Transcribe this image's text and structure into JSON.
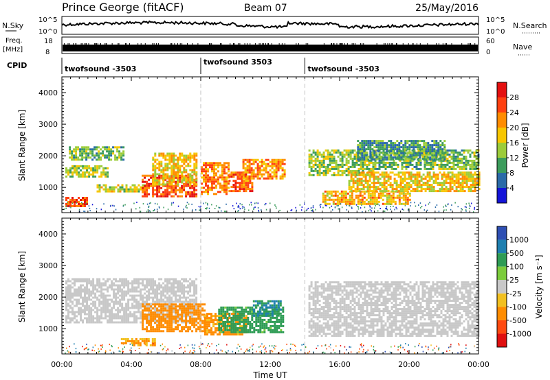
{
  "header": {
    "station": "Prince George (fitACF)",
    "beam": "Beam 07",
    "date": "25/May/2016"
  },
  "top_panels": {
    "nsky_label": "N.Sky",
    "nsky_ticks": [
      "10^5",
      "10^0"
    ],
    "nsearch_label": "N.Search",
    "nsearch_ticks": [
      "10^5",
      "10^0"
    ],
    "freq_label": "Freq.",
    "freq_unit": "[MHz]",
    "freq_ticks": [
      "18",
      "8"
    ],
    "nave_label": "Nave",
    "nave_ticks": [
      "60",
      "0"
    ],
    "cpid_label": "CPID",
    "cpid_segments": [
      {
        "label": "twofsound -3503",
        "start_hour": 0,
        "end_hour": 8
      },
      {
        "label": "twofsound 3503",
        "start_hour": 8,
        "end_hour": 14
      },
      {
        "label": "twofsound -3503",
        "start_hour": 14,
        "end_hour": 24
      }
    ]
  },
  "colorbars": {
    "power": {
      "label": "Power [dB]",
      "ticks": [
        "28",
        "24",
        "20",
        "16",
        "12",
        "8",
        "4"
      ],
      "colors": [
        "#e41010",
        "#ff4010",
        "#ff8c00",
        "#f7c600",
        "#9ccc3a",
        "#3c9c5c",
        "#2a6aa8",
        "#1414d8"
      ]
    },
    "velocity": {
      "label": "Velocity [m s⁻¹]",
      "ticks": [
        "1000",
        "500",
        "100",
        "25",
        "-25",
        "-100",
        "-500",
        "-1000"
      ],
      "colors": [
        "#2e4fb3",
        "#1e7fb0",
        "#2e9c55",
        "#7ccc3c",
        "#c8c8c8",
        "#f2c020",
        "#ff8c00",
        "#ff4a10",
        "#e01010"
      ]
    }
  },
  "chart_data": [
    {
      "type": "heatmap",
      "name": "power",
      "ylabel": "Slant Range [km]",
      "ylim": [
        200,
        4500
      ],
      "yticks": [
        "1000",
        "2000",
        "3000",
        "4000"
      ],
      "xlim": [
        0,
        24
      ],
      "markers_hours": [
        8,
        14
      ],
      "regions": [
        {
          "x": [
            0.2,
            2.6
          ],
          "y": [
            1350,
            1700
          ],
          "level_db": 14
        },
        {
          "x": [
            0.4,
            3.6
          ],
          "y": [
            1900,
            2300
          ],
          "level_db": 12
        },
        {
          "x": [
            0.2,
            1.4
          ],
          "y": [
            400,
            700
          ],
          "level_db": 26
        },
        {
          "x": [
            2.0,
            4.8
          ],
          "y": [
            900,
            1100
          ],
          "level_db": 16
        },
        {
          "x": [
            4.6,
            7.8
          ],
          "y": [
            700,
            1400
          ],
          "level_db": 26
        },
        {
          "x": [
            5.2,
            7.8
          ],
          "y": [
            1100,
            2100
          ],
          "level_db": 18
        },
        {
          "x": [
            8.0,
            9.6
          ],
          "y": [
            800,
            1800
          ],
          "level_db": 22
        },
        {
          "x": [
            9.6,
            11.0
          ],
          "y": [
            900,
            1500
          ],
          "level_db": 24
        },
        {
          "x": [
            10.4,
            12.8
          ],
          "y": [
            1300,
            1900
          ],
          "level_db": 22
        },
        {
          "x": [
            14.2,
            18.0
          ],
          "y": [
            1400,
            2200
          ],
          "level_db": 14
        },
        {
          "x": [
            15.0,
            20.0
          ],
          "y": [
            500,
            900
          ],
          "level_db": 20
        },
        {
          "x": [
            16.5,
            24.0
          ],
          "y": [
            900,
            1500
          ],
          "level_db": 18
        },
        {
          "x": [
            18.0,
            24.0
          ],
          "y": [
            1600,
            2200
          ],
          "level_db": 12
        },
        {
          "x": [
            17.0,
            22.0
          ],
          "y": [
            1900,
            2500
          ],
          "level_db": 10
        }
      ]
    },
    {
      "type": "heatmap",
      "name": "velocity",
      "ylabel": "Slant Range [km]",
      "ylim": [
        200,
        4500
      ],
      "yticks": [
        "1000",
        "2000",
        "3000",
        "4000"
      ],
      "xlim": [
        0,
        24
      ],
      "xticks": [
        "00:00",
        "04:00",
        "08:00",
        "12:00",
        "16:00",
        "20:00",
        "00:00"
      ],
      "xlabel": "Time UT",
      "markers_hours": [
        8,
        14
      ],
      "regions": [
        {
          "x": [
            0.2,
            7.8
          ],
          "y": [
            1200,
            2600
          ],
          "velocity": 0
        },
        {
          "x": [
            14.2,
            24.0
          ],
          "y": [
            800,
            2500
          ],
          "velocity": 0
        },
        {
          "x": [
            4.6,
            8.2
          ],
          "y": [
            900,
            1800
          ],
          "velocity": -300
        },
        {
          "x": [
            8.2,
            10.6
          ],
          "y": [
            800,
            1500
          ],
          "velocity": -150
        },
        {
          "x": [
            9.0,
            12.8
          ],
          "y": [
            900,
            1700
          ],
          "velocity": 200
        },
        {
          "x": [
            11.0,
            12.6
          ],
          "y": [
            1400,
            1900
          ],
          "velocity": 500
        },
        {
          "x": [
            3.4,
            5.4
          ],
          "y": [
            500,
            700
          ],
          "velocity": -100
        }
      ]
    }
  ]
}
